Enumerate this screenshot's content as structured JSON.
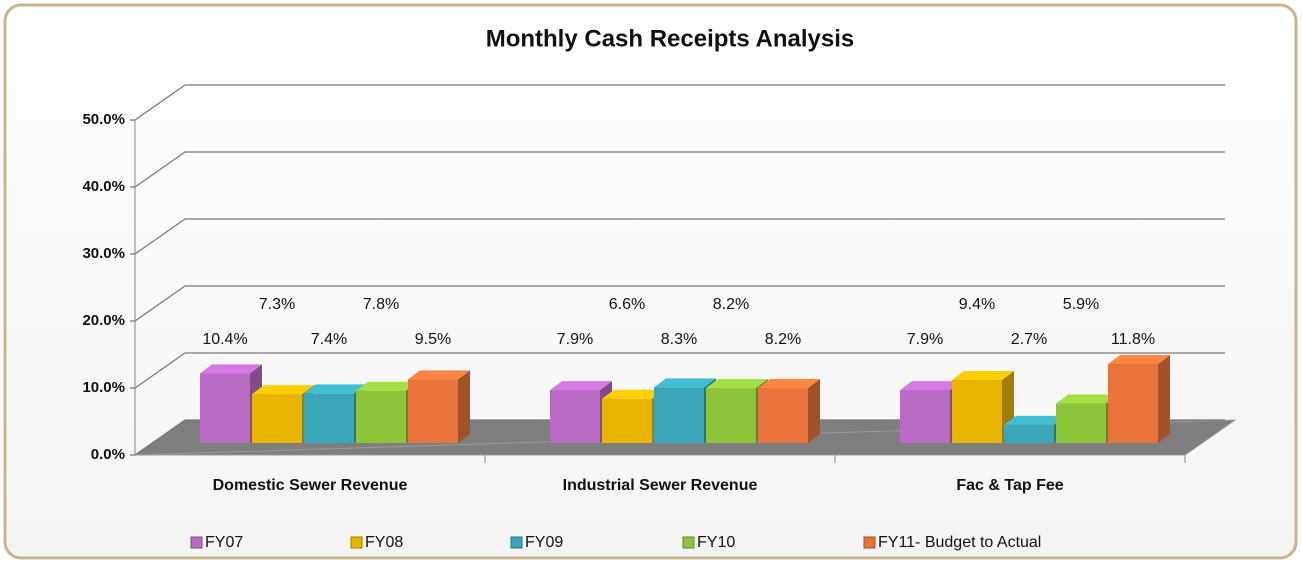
{
  "chart_data": {
    "type": "bar3d",
    "title": "Monthly Cash Receipts Analysis",
    "categories": [
      "Domestic Sewer Revenue",
      "Industrial Sewer Revenue",
      "Fac & Tap Fee"
    ],
    "series": [
      {
        "name": "FY07",
        "color": "#b86ac4",
        "values": [
          10.4,
          7.9,
          7.9
        ],
        "value_labels": [
          "10.4%",
          "7.9%",
          "7.9%"
        ]
      },
      {
        "name": "FY08",
        "color": "#e8b400",
        "values": [
          7.3,
          6.6,
          9.4
        ],
        "value_labels": [
          "7.3%",
          "6.6%",
          "9.4%"
        ]
      },
      {
        "name": "FY09",
        "color": "#3aa6b9",
        "values": [
          7.4,
          8.3,
          2.7
        ],
        "value_labels": [
          "7.4%",
          "8.3%",
          "2.7%"
        ]
      },
      {
        "name": "FY10",
        "color": "#8cc43a",
        "values": [
          7.8,
          8.2,
          5.9
        ],
        "value_labels": [
          "7.8%",
          "8.2%",
          "5.9%"
        ]
      },
      {
        "name": "FY11- Budget to Actual",
        "color": "#e8743c",
        "values": [
          9.5,
          8.2,
          11.8
        ],
        "value_labels": [
          "9.5%",
          "8.2%",
          "11.8%"
        ]
      }
    ],
    "ylim": [
      0,
      50
    ],
    "yticks": [
      {
        "value": 0,
        "label": "0.0%"
      },
      {
        "value": 10,
        "label": "10.0%"
      },
      {
        "value": 20,
        "label": "20.0%"
      },
      {
        "value": 30,
        "label": "30.0%"
      },
      {
        "value": 40,
        "label": "40.0%"
      },
      {
        "value": 50,
        "label": "50.0%"
      }
    ],
    "grid": true,
    "legend": "bottom"
  }
}
